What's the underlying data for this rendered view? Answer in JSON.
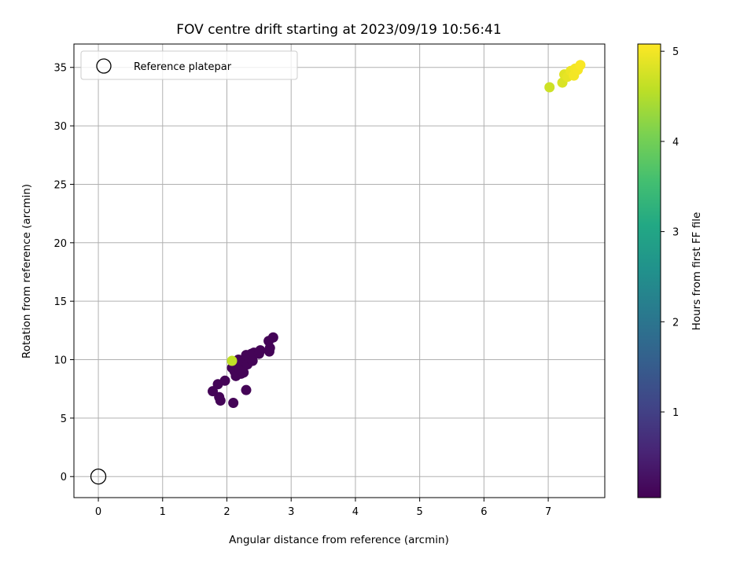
{
  "chart_data": {
    "type": "scatter",
    "title": "FOV centre drift starting at 2023/09/19 10:56:41",
    "xlabel": "Angular distance from reference (arcmin)",
    "ylabel": "Rotation from reference (arcmin)",
    "xlim": [
      -0.38,
      7.88
    ],
    "ylim": [
      -1.8,
      37.0
    ],
    "xticks": [
      0,
      1,
      2,
      3,
      4,
      5,
      6,
      7
    ],
    "yticks": [
      0,
      5,
      10,
      15,
      20,
      25,
      30,
      35
    ],
    "grid": true,
    "legend": {
      "position": "top-left",
      "entries": [
        "Reference platepar"
      ]
    },
    "reference": {
      "x": 0,
      "y": 0,
      "label": "Reference platepar"
    },
    "colorbar": {
      "label": "Hours from first FF file",
      "colormap": "viridis",
      "range": [
        0.05,
        5.08
      ],
      "ticks": [
        1,
        2,
        3,
        4,
        5
      ]
    },
    "points": [
      {
        "x": 1.78,
        "y": 7.3,
        "c": 0.1
      },
      {
        "x": 1.86,
        "y": 7.9,
        "c": 0.1
      },
      {
        "x": 1.88,
        "y": 6.8,
        "c": 0.1
      },
      {
        "x": 1.9,
        "y": 6.5,
        "c": 0.1
      },
      {
        "x": 1.97,
        "y": 8.2,
        "c": 0.1
      },
      {
        "x": 2.1,
        "y": 6.3,
        "c": 0.1
      },
      {
        "x": 2.3,
        "y": 7.4,
        "c": 0.1
      },
      {
        "x": 2.08,
        "y": 9.3,
        "c": 0.1
      },
      {
        "x": 2.12,
        "y": 9.0,
        "c": 0.1
      },
      {
        "x": 2.14,
        "y": 8.6,
        "c": 0.1
      },
      {
        "x": 2.15,
        "y": 9.6,
        "c": 0.1
      },
      {
        "x": 2.18,
        "y": 10.0,
        "c": 0.1
      },
      {
        "x": 2.2,
        "y": 9.2,
        "c": 0.1
      },
      {
        "x": 2.22,
        "y": 8.8,
        "c": 0.1
      },
      {
        "x": 2.24,
        "y": 9.5,
        "c": 0.1
      },
      {
        "x": 2.26,
        "y": 8.9,
        "c": 0.1
      },
      {
        "x": 2.28,
        "y": 9.8,
        "c": 0.1
      },
      {
        "x": 2.3,
        "y": 10.4,
        "c": 0.1
      },
      {
        "x": 2.32,
        "y": 9.6,
        "c": 0.1
      },
      {
        "x": 2.35,
        "y": 10.1,
        "c": 0.1
      },
      {
        "x": 2.38,
        "y": 10.5,
        "c": 0.1
      },
      {
        "x": 2.4,
        "y": 9.9,
        "c": 0.1
      },
      {
        "x": 2.42,
        "y": 10.6,
        "c": 0.1
      },
      {
        "x": 2.5,
        "y": 10.5,
        "c": 0.1
      },
      {
        "x": 2.52,
        "y": 10.8,
        "c": 0.1
      },
      {
        "x": 2.65,
        "y": 11.6,
        "c": 0.1
      },
      {
        "x": 2.66,
        "y": 10.7,
        "c": 0.1
      },
      {
        "x": 2.67,
        "y": 11.0,
        "c": 0.1
      },
      {
        "x": 2.72,
        "y": 11.9,
        "c": 0.1
      },
      {
        "x": 2.08,
        "y": 9.9,
        "c": 4.6
      },
      {
        "x": 7.02,
        "y": 33.3,
        "c": 4.7
      },
      {
        "x": 7.22,
        "y": 33.7,
        "c": 4.8
      },
      {
        "x": 7.25,
        "y": 34.4,
        "c": 4.85
      },
      {
        "x": 7.3,
        "y": 34.2,
        "c": 4.9
      },
      {
        "x": 7.35,
        "y": 34.7,
        "c": 4.95
      },
      {
        "x": 7.4,
        "y": 34.3,
        "c": 5.0
      },
      {
        "x": 7.42,
        "y": 34.9,
        "c": 5.0
      },
      {
        "x": 7.46,
        "y": 34.8,
        "c": 5.02
      },
      {
        "x": 7.5,
        "y": 35.2,
        "c": 5.05
      }
    ]
  }
}
